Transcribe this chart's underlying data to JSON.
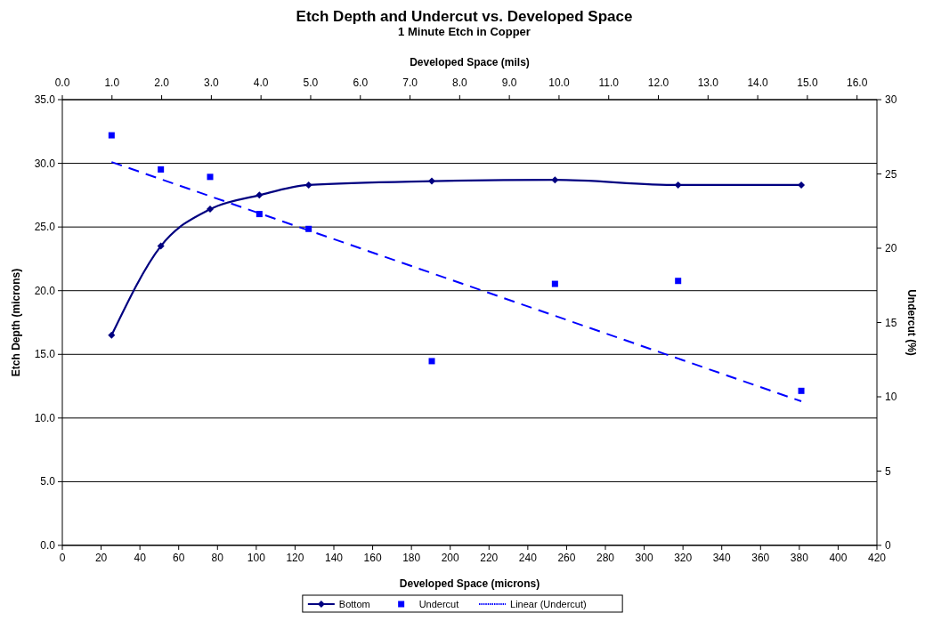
{
  "chart_data": {
    "type": "line",
    "title": "Etch Depth and Undercut vs. Developed Space",
    "subtitle": "1 Minute Etch in Copper",
    "xlabel": "Developed Space (microns)",
    "x2label": "Developed Space (mils)",
    "ylabel": "Etch Depth (microns)",
    "y2label": "Undercut (%)",
    "x": [
      25.4,
      50.8,
      76.2,
      101.6,
      127,
      190.5,
      254,
      317.5,
      381
    ],
    "xlim": [
      0,
      420
    ],
    "xticks": [
      0,
      20,
      40,
      60,
      80,
      100,
      120,
      140,
      160,
      180,
      200,
      220,
      240,
      260,
      280,
      300,
      320,
      340,
      360,
      380,
      400,
      420
    ],
    "x2lim": [
      0,
      16.4
    ],
    "x2ticks": [
      {
        "value": 0,
        "label": "0.0"
      },
      {
        "value": 1,
        "label": "1.0"
      },
      {
        "value": 2,
        "label": "2.0"
      },
      {
        "value": 3,
        "label": "3.0"
      },
      {
        "value": 4,
        "label": "4.0"
      },
      {
        "value": 5,
        "label": "5.0"
      },
      {
        "value": 6,
        "label": "6.0"
      },
      {
        "value": 7,
        "label": "7.0"
      },
      {
        "value": 8,
        "label": "8.0"
      },
      {
        "value": 9,
        "label": "9.0"
      },
      {
        "value": 10,
        "label": "10.0"
      },
      {
        "value": 11,
        "label": "11.0"
      },
      {
        "value": 12,
        "label": "12.0"
      },
      {
        "value": 13,
        "label": "13.0"
      },
      {
        "value": 14,
        "label": "14.0"
      },
      {
        "value": 15,
        "label": "15.0"
      },
      {
        "value": 16,
        "label": "16.0"
      }
    ],
    "ylim": [
      0,
      35
    ],
    "yticks": [
      {
        "value": 0,
        "label": "0.0"
      },
      {
        "value": 5,
        "label": "5.0"
      },
      {
        "value": 10,
        "label": "10.0"
      },
      {
        "value": 15,
        "label": "15.0"
      },
      {
        "value": 20,
        "label": "20.0"
      },
      {
        "value": 25,
        "label": "25.0"
      },
      {
        "value": 30,
        "label": "30.0"
      },
      {
        "value": 35,
        "label": "35.0"
      }
    ],
    "y2lim": [
      0,
      30
    ],
    "y2ticks": [
      0,
      5,
      10,
      15,
      20,
      25,
      30
    ],
    "grid": "y",
    "legend": "bottom",
    "series": [
      {
        "name": "Bottom",
        "color": "#000080",
        "marker": "diamond",
        "line_style": "solid",
        "values": [
          16.5,
          23.5,
          26.4,
          27.5,
          28.3,
          28.6,
          28.7,
          28.3,
          28.3
        ]
      },
      {
        "name": "Undercut",
        "type": "scatter",
        "color": "#0000ff",
        "marker": "square",
        "axis": "y2",
        "values": [
          27.6,
          25.3,
          24.8,
          22.3,
          21.3,
          12.4,
          17.6,
          17.8,
          10.4
        ]
      },
      {
        "name": "Linear (Undercut)",
        "type": "line",
        "color": "#0000ff",
        "marker": "none",
        "line_style": "dashed",
        "axis": "y2",
        "x": [
          25.4,
          381
        ],
        "values": [
          25.8,
          9.7
        ]
      }
    ]
  }
}
